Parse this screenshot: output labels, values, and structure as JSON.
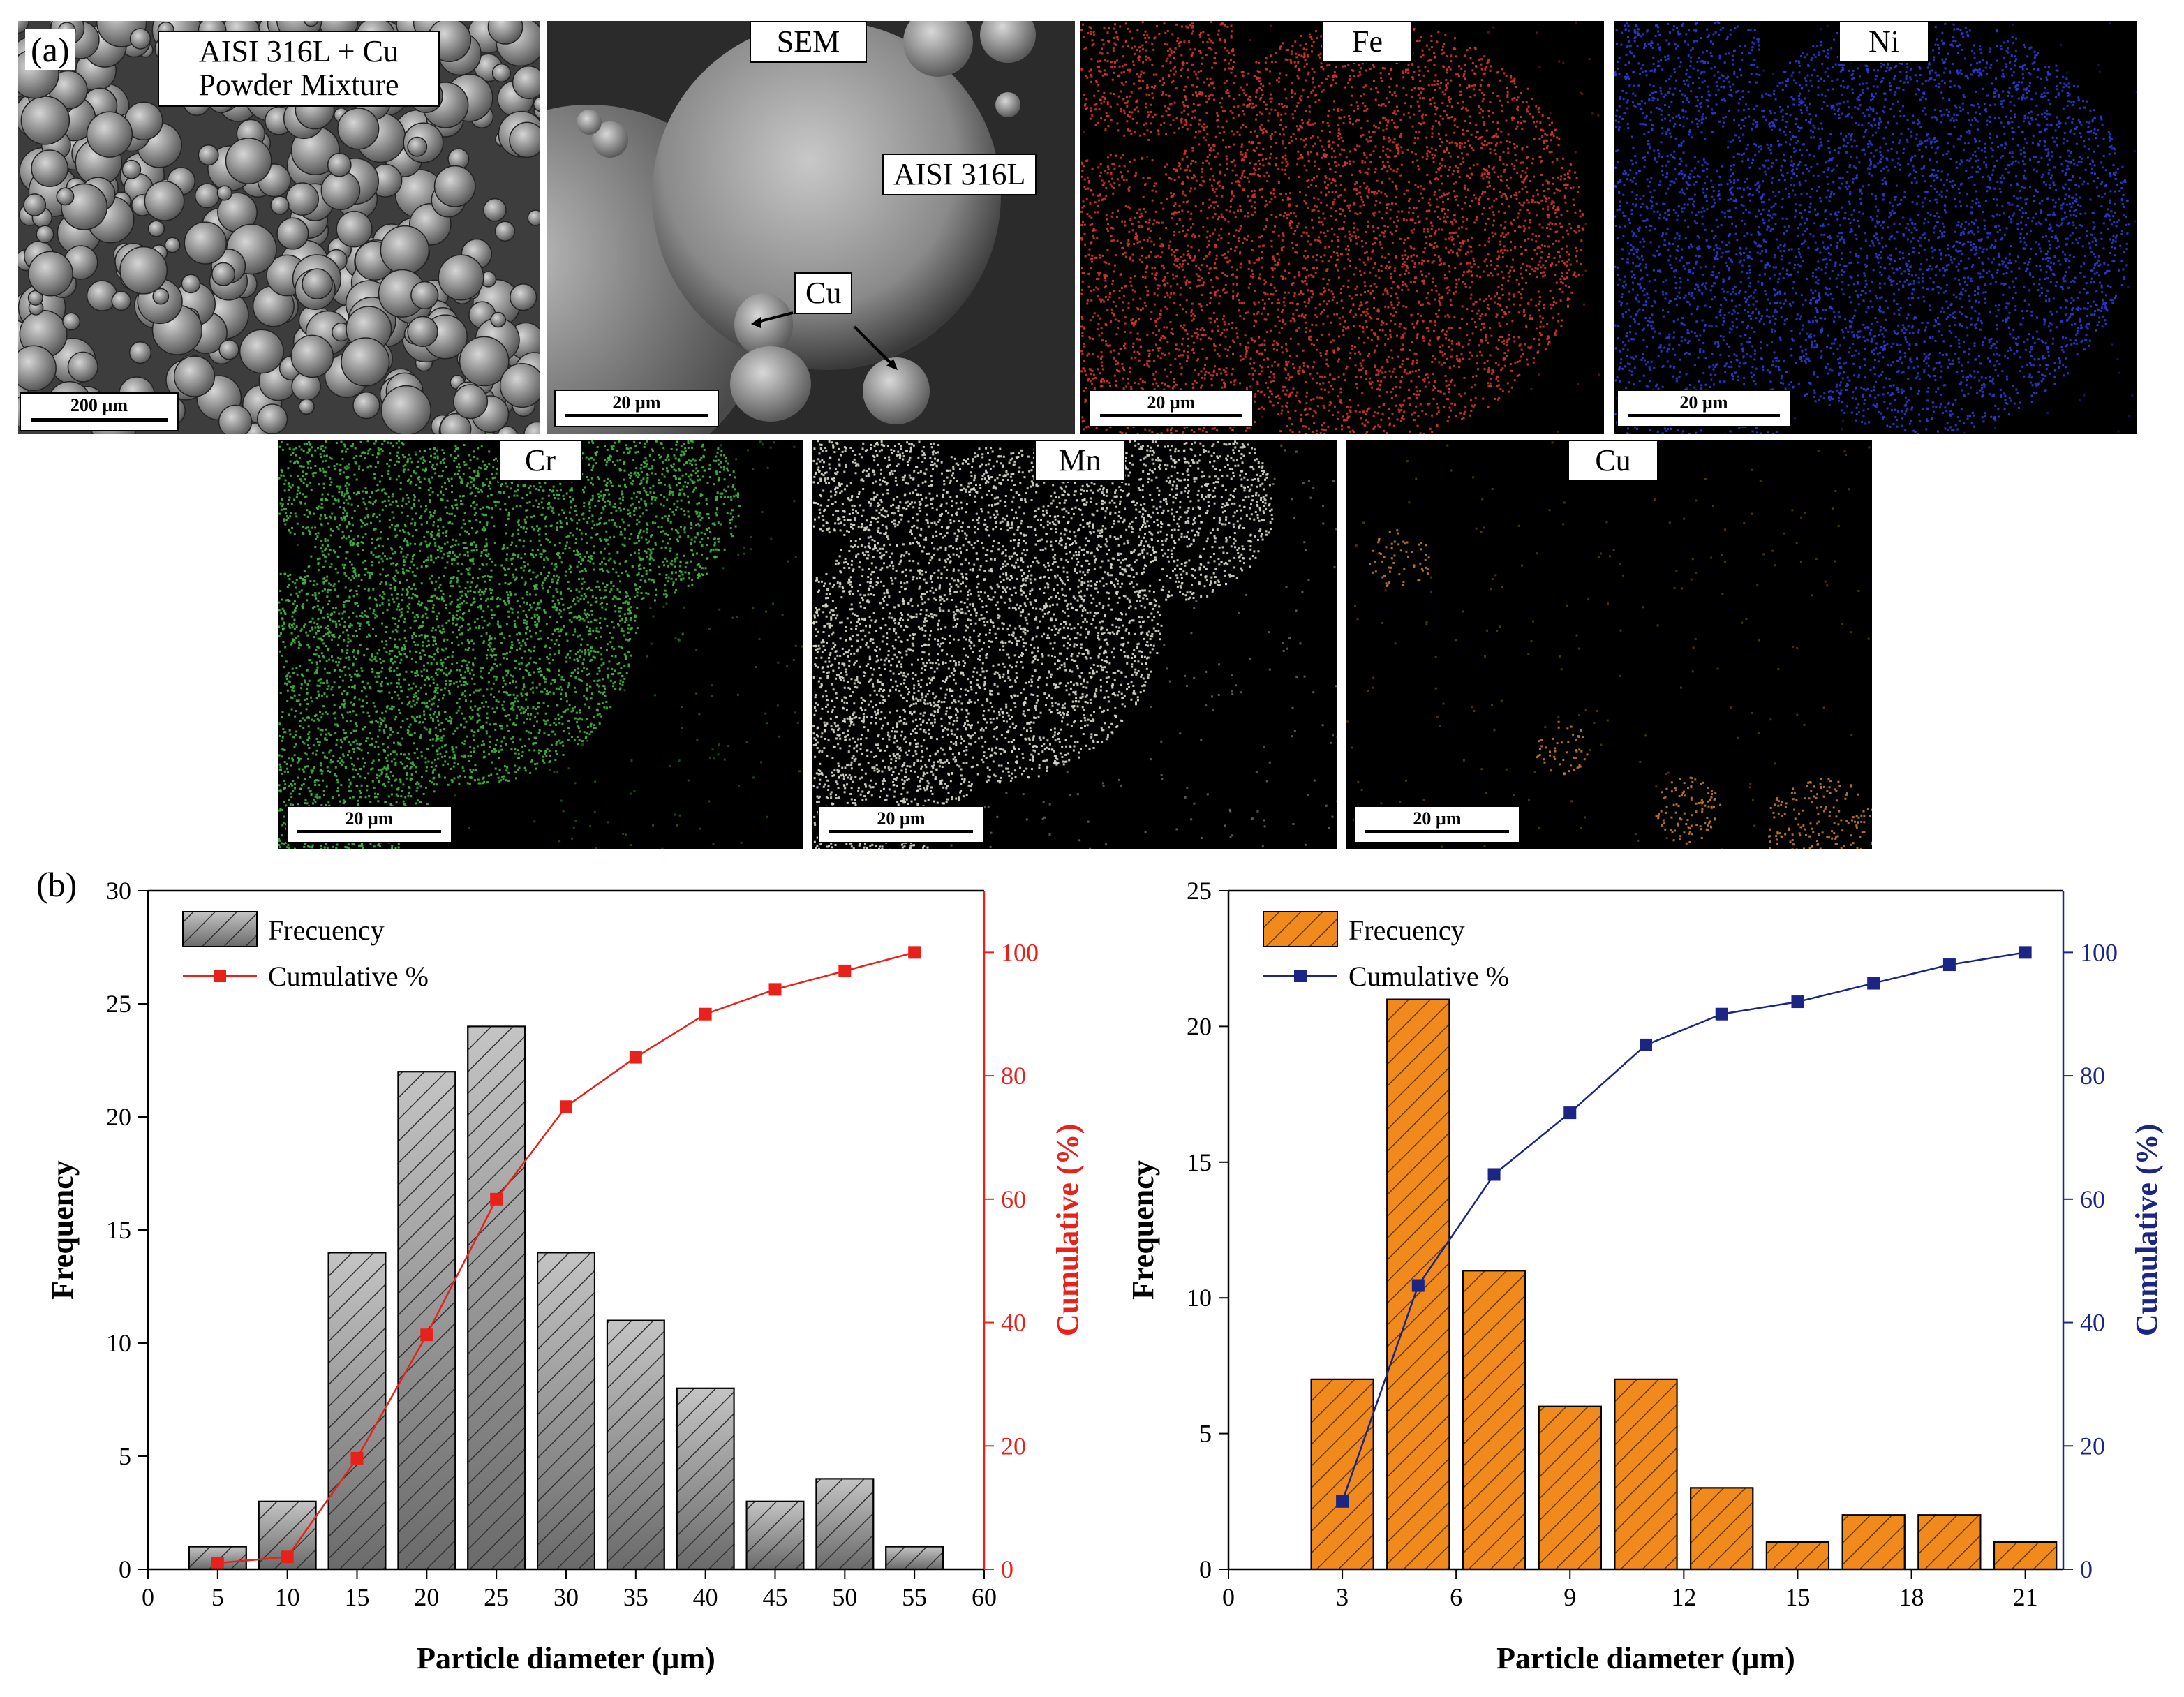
{
  "figure": {
    "panel_a_label": "(a)",
    "panel_b_label": "(b)",
    "overview": {
      "label_line1": "AISI 316L + Cu",
      "label_line2": "Powder Mixture",
      "scale": "200 µm"
    },
    "sem": {
      "label": "SEM",
      "annot_316": "AISI 316L",
      "annot_cu": "Cu",
      "scale": "20 µm"
    },
    "maps": [
      {
        "label": "Fe",
        "scale": "20 µm",
        "color": "#d8342a"
      },
      {
        "label": "Ni",
        "scale": "20 µm",
        "color": "#2b3ad8"
      },
      {
        "label": "Cr",
        "scale": "20 µm",
        "color": "#3fb83f"
      },
      {
        "label": "Mn",
        "scale": "20 µm",
        "color": "#d8d8c8"
      },
      {
        "label": "Cu",
        "scale": "20 µm",
        "color": "#c07a2a"
      }
    ]
  },
  "chart_data": [
    {
      "type": "bar",
      "x": [
        5,
        10,
        15,
        20,
        25,
        30,
        35,
        40,
        45,
        50,
        55
      ],
      "xlabel": "Particle diameter (µm)",
      "ylabel": "Frequency",
      "y2label": "Cumulative (%)",
      "xlim": [
        0,
        60
      ],
      "xticks": [
        0,
        5,
        10,
        15,
        20,
        25,
        30,
        35,
        40,
        45,
        50,
        55,
        60
      ],
      "ylim": [
        0,
        30
      ],
      "yticks": [
        0,
        5,
        10,
        15,
        20,
        25,
        30
      ],
      "y2lim": [
        0,
        110
      ],
      "y2ticks": [
        0,
        20,
        40,
        60,
        80,
        100
      ],
      "series": [
        {
          "name": "Frecuency",
          "type": "bar",
          "values": [
            1,
            3,
            14,
            22,
            24,
            14,
            11,
            8,
            3,
            4,
            1
          ],
          "color": "#9a9a9a"
        },
        {
          "name": "Cumulative %",
          "type": "line",
          "axis": "right",
          "values": [
            1,
            2,
            18,
            38,
            60,
            75,
            83,
            90,
            94,
            97,
            100
          ],
          "color": "#e8221b"
        }
      ],
      "legend": "top-left",
      "y2color": "#e8221b"
    },
    {
      "type": "bar",
      "x": [
        3,
        5,
        7,
        9,
        11,
        13,
        15,
        17,
        19,
        21
      ],
      "xlabel": "Particle diameter (µm)",
      "ylabel": "Frequency",
      "y2label": "Cumulative (%)",
      "xlim": [
        0,
        22
      ],
      "xticks": [
        0,
        3,
        6,
        9,
        12,
        15,
        18,
        21
      ],
      "ylim": [
        0,
        25
      ],
      "yticks": [
        0,
        5,
        10,
        15,
        20,
        25
      ],
      "y2lim": [
        0,
        110
      ],
      "y2ticks": [
        0,
        20,
        40,
        60,
        80,
        100
      ],
      "series": [
        {
          "name": "Frecuency",
          "type": "bar",
          "values": [
            7,
            21,
            11,
            6,
            7,
            3,
            1,
            2,
            2,
            1
          ],
          "color": "#f08a1c"
        },
        {
          "name": "Cumulative %",
          "type": "line",
          "axis": "right",
          "values": [
            11,
            46,
            64,
            74,
            85,
            90,
            92,
            95,
            98,
            100
          ],
          "color": "#1a2585"
        }
      ],
      "legend": "top-left",
      "y2color": "#1a2585"
    }
  ]
}
